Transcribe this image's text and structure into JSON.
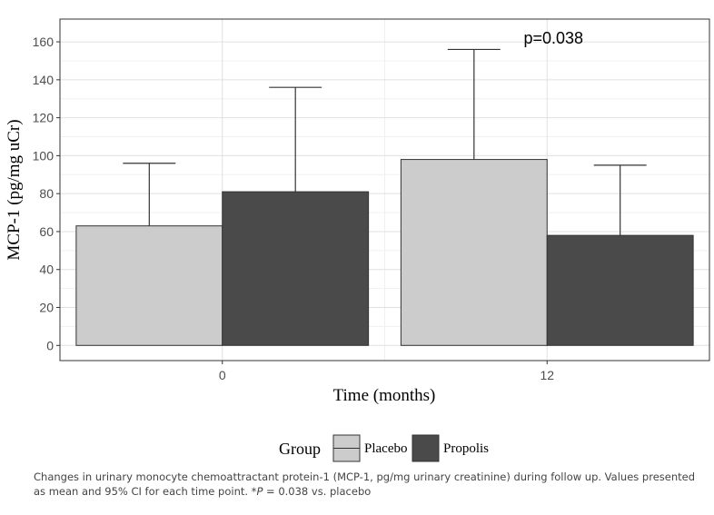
{
  "chart_data": {
    "type": "bar",
    "xlabel": "Time (months)",
    "ylabel": "MCP-1 (pg/mg uCr)",
    "categories": [
      "0",
      "12"
    ],
    "series": [
      {
        "name": "Placebo",
        "values": [
          63,
          98
        ],
        "ci_upper": [
          96,
          156
        ],
        "color": "#cccccc"
      },
      {
        "name": "Propolis",
        "values": [
          81,
          58
        ],
        "ci_upper": [
          136,
          95
        ],
        "color": "#4a4a4a"
      }
    ],
    "ylim": [
      -8,
      172
    ],
    "yticks": [
      0,
      20,
      40,
      60,
      80,
      100,
      120,
      140,
      160
    ],
    "grid": true,
    "legend": {
      "title": "Group",
      "position": "bottom"
    },
    "annotations": [
      {
        "text": "p=0.038",
        "category": "12"
      }
    ]
  },
  "caption": {
    "text_before": "Changes in urinary monocyte chemoattractant protein-1 (MCP-1, pg/mg urinary creatinine) during follow up. Values presented as mean and 95% CI for each time point. *",
    "p_symbol": "P",
    "text_after": " = 0.038 vs. placebo"
  }
}
